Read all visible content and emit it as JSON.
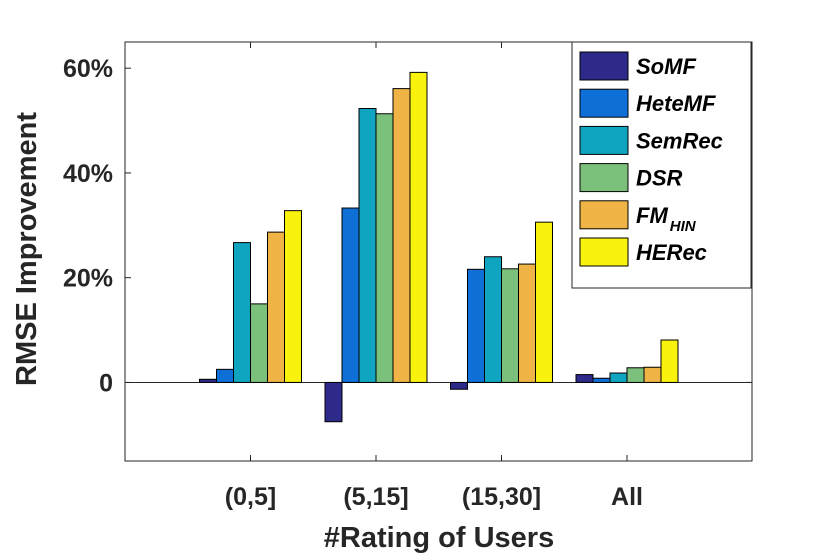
{
  "chart_data": {
    "type": "bar",
    "title": "",
    "xlabel": "#Rating of Users",
    "ylabel": "RMSE Improvement",
    "categories": [
      "(0,5]",
      "(5,15]",
      "(15,30]",
      "All"
    ],
    "ylim": [
      -15,
      65
    ],
    "yticks": [
      0,
      20,
      40,
      60
    ],
    "ytick_labels": [
      "0",
      "20%",
      "40%",
      "60%"
    ],
    "grid": false,
    "legend_position": "top-right",
    "series": [
      {
        "name": "SoMF",
        "legend_main": "SoMF",
        "legend_sub": "",
        "color": "#2e2a8a",
        "values": [
          0.6,
          -7.5,
          -1.3,
          1.5
        ]
      },
      {
        "name": "HeteMF",
        "legend_main": "HeteMF",
        "legend_sub": "",
        "color": "#0e6fd6",
        "values": [
          2.5,
          33.3,
          21.6,
          0.8
        ]
      },
      {
        "name": "SemRec",
        "legend_main": "SemRec",
        "legend_sub": "",
        "color": "#0fa5c1",
        "values": [
          26.7,
          52.3,
          24.0,
          1.8
        ]
      },
      {
        "name": "DSR",
        "legend_main": "DSR",
        "legend_sub": "",
        "color": "#7cc17b",
        "values": [
          15.0,
          51.3,
          21.7,
          2.8
        ]
      },
      {
        "name": "FM_HIN",
        "legend_main": "FM",
        "legend_sub": "HIN",
        "color": "#f0b345",
        "values": [
          28.7,
          56.1,
          22.6,
          2.9
        ]
      },
      {
        "name": "HERec",
        "legend_main": "HERec",
        "legend_sub": "",
        "color": "#f8f20d",
        "values": [
          32.8,
          59.2,
          30.6,
          8.1
        ]
      }
    ]
  }
}
